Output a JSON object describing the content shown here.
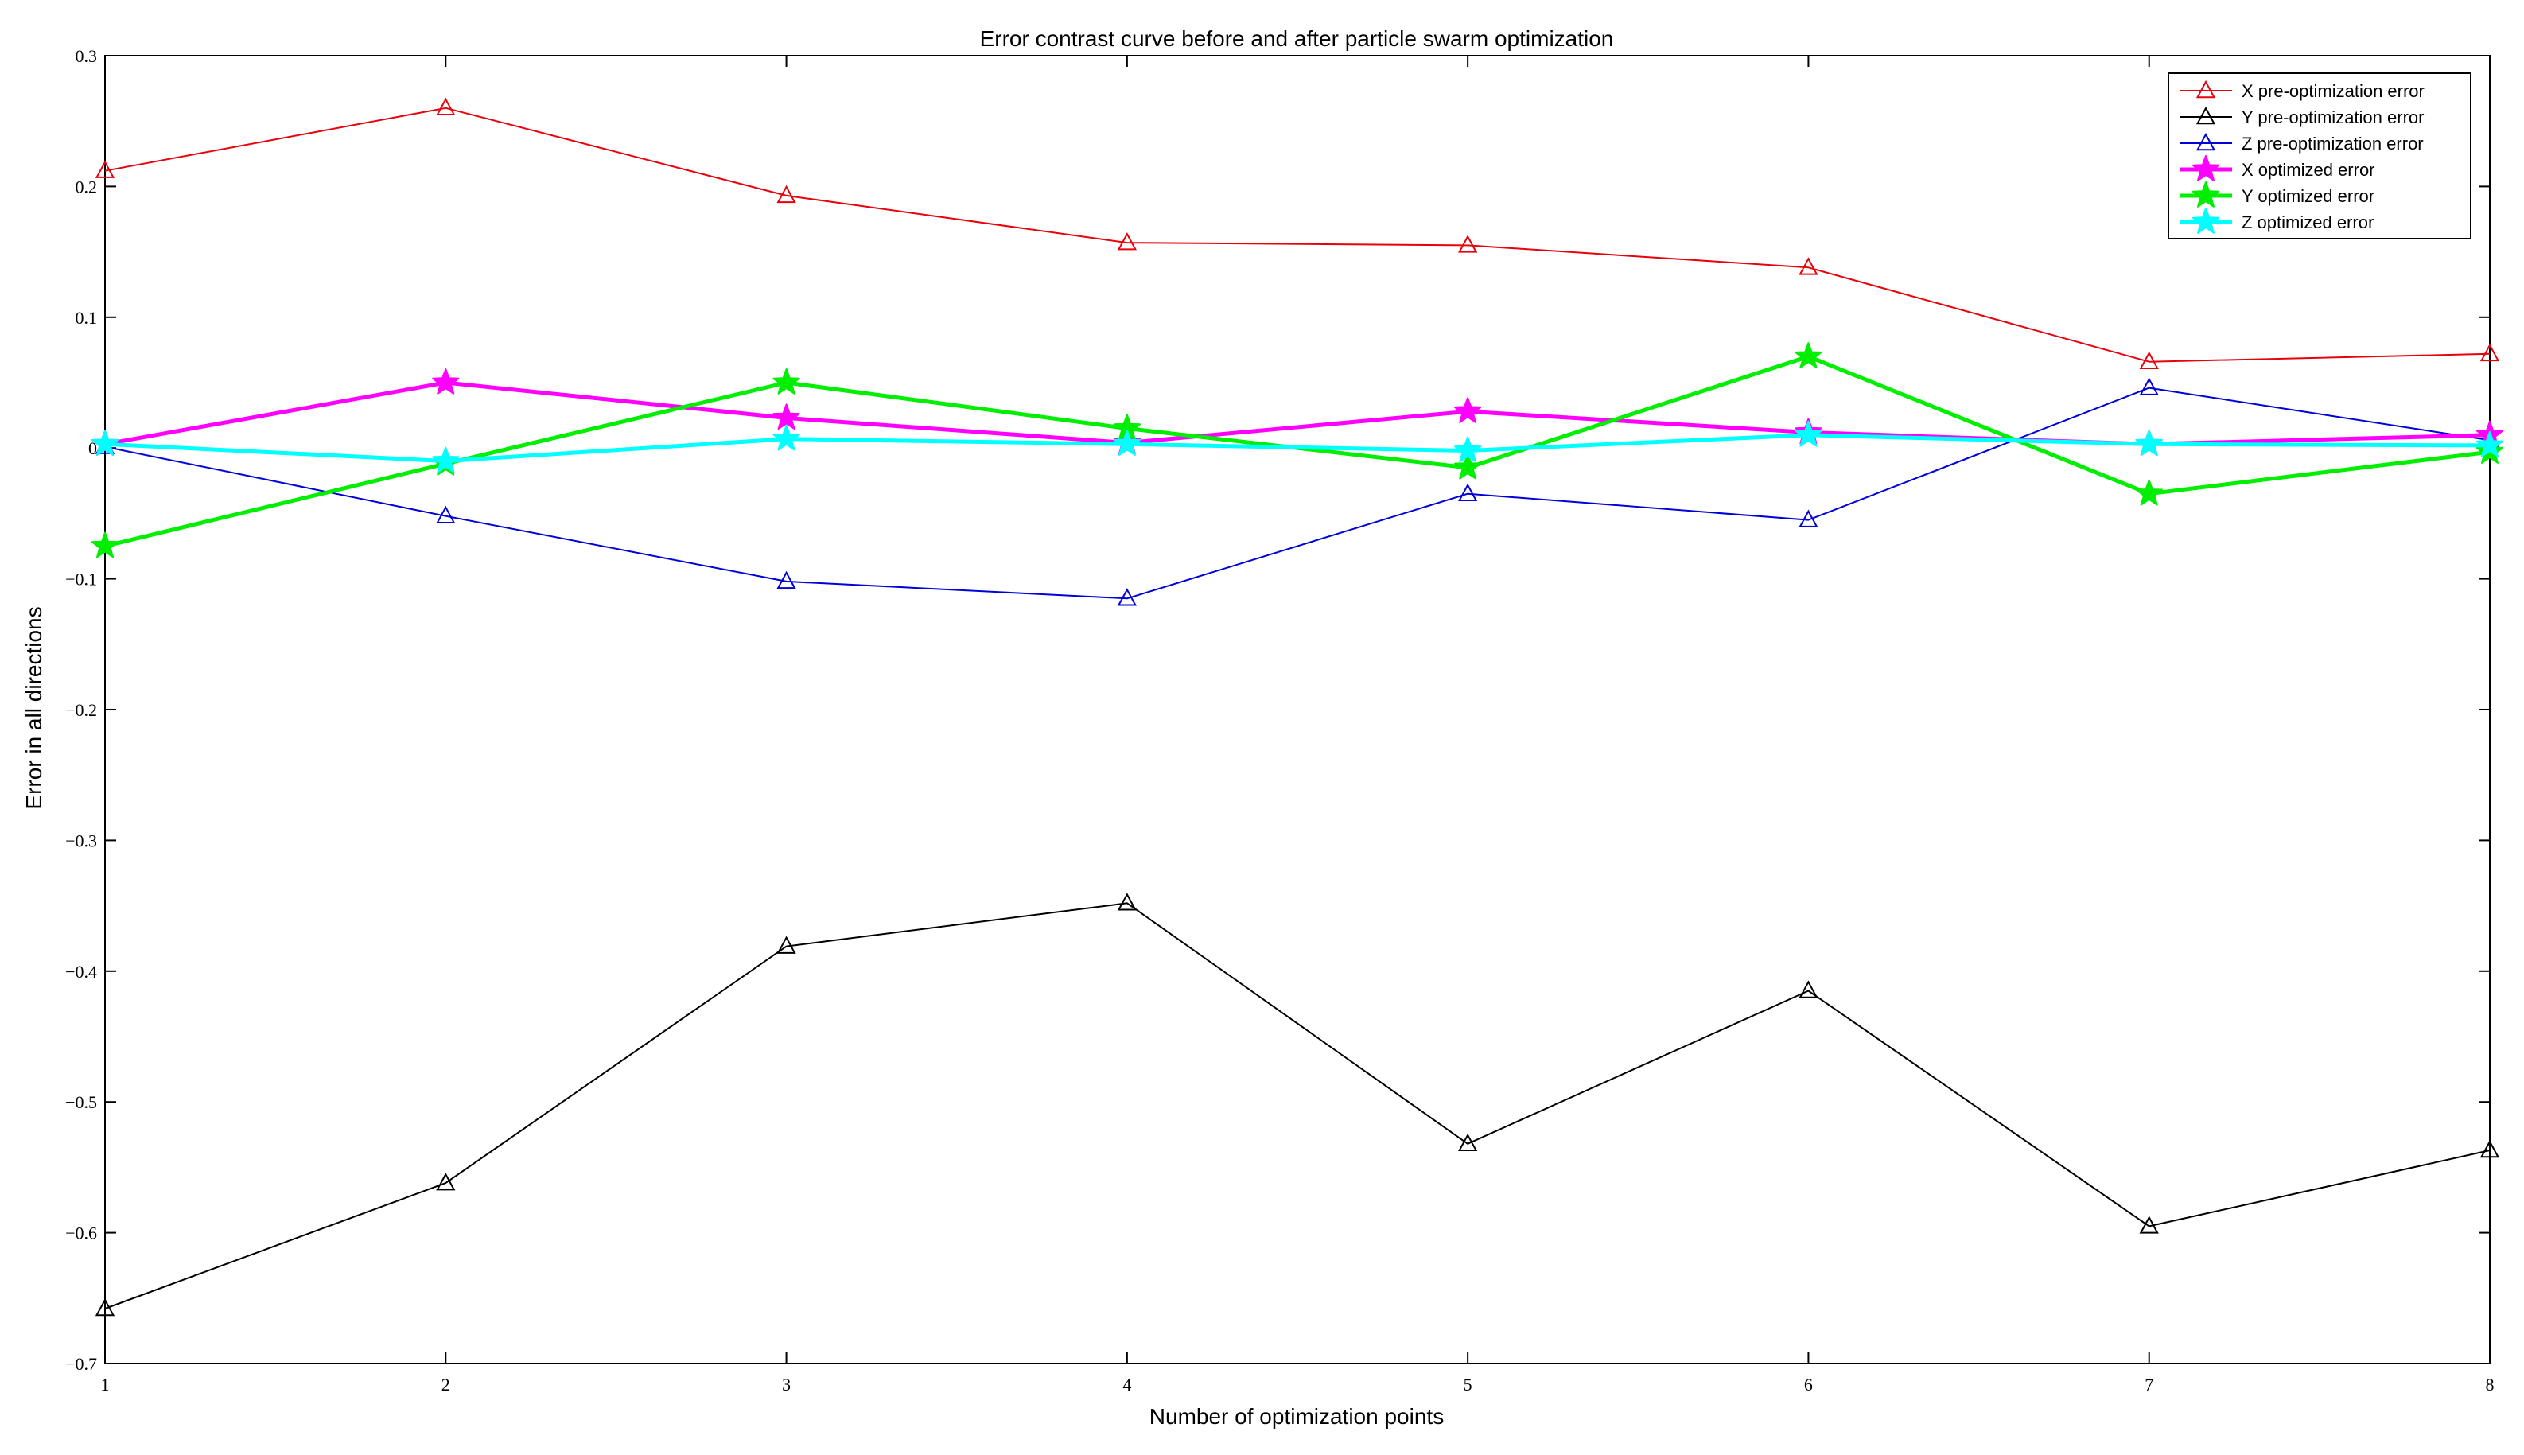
{
  "chart_data": {
    "type": "line",
    "title": "Error contrast curve before and after particle swarm optimization",
    "xlabel": "Number of optimization points",
    "ylabel": "Error in all directions",
    "x": [
      1,
      2,
      3,
      4,
      5,
      6,
      7,
      8
    ],
    "xlim": [
      1,
      8
    ],
    "ylim": [
      -0.7,
      0.3
    ],
    "xticks": [
      "1",
      "2",
      "3",
      "4",
      "5",
      "6",
      "7",
      "8"
    ],
    "yticks": [
      0.3,
      0.2,
      0.1,
      0,
      -0.1,
      -0.2,
      -0.3,
      -0.4,
      -0.5,
      -0.6,
      -0.7
    ],
    "ytick_labels": [
      "0.3",
      "0.2",
      "0.1",
      "0",
      "−0.1",
      "−0.2",
      "−0.3",
      "−0.4",
      "−0.5",
      "−0.6",
      "−0.7"
    ],
    "grid": false,
    "legend_position": "top-right",
    "series": [
      {
        "name": "X pre-optimization error",
        "color": "#e8000b",
        "marker": "triangle",
        "width": "thin",
        "values": [
          0.212,
          0.26,
          0.193,
          0.157,
          0.155,
          0.138,
          0.066,
          0.072
        ]
      },
      {
        "name": "Y pre-optimization error",
        "color": "#000000",
        "marker": "triangle",
        "width": "thin",
        "values": [
          -0.658,
          -0.562,
          -0.381,
          -0.348,
          -0.532,
          -0.415,
          -0.595,
          -0.537
        ]
      },
      {
        "name": "Z pre-optimization error",
        "color": "#0000d8",
        "marker": "triangle",
        "width": "thin",
        "values": [
          0.001,
          -0.052,
          -0.102,
          -0.115,
          -0.035,
          -0.055,
          0.046,
          0.006
        ]
      },
      {
        "name": "X optimized error",
        "color": "#ff00ff",
        "marker": "star",
        "width": "thick",
        "values": [
          0.003,
          0.05,
          0.023,
          0.004,
          0.028,
          0.012,
          0.003,
          0.01
        ]
      },
      {
        "name": "Y optimized error",
        "color": "#00ee00",
        "marker": "star",
        "width": "thick",
        "values": [
          -0.075,
          -0.012,
          0.05,
          0.015,
          -0.015,
          0.07,
          -0.035,
          -0.003
        ]
      },
      {
        "name": "Z optimized error",
        "color": "#00ffff",
        "marker": "star",
        "width": "thick",
        "values": [
          0.003,
          -0.01,
          0.007,
          0.003,
          -0.002,
          0.01,
          0.003,
          0.002
        ]
      }
    ]
  }
}
